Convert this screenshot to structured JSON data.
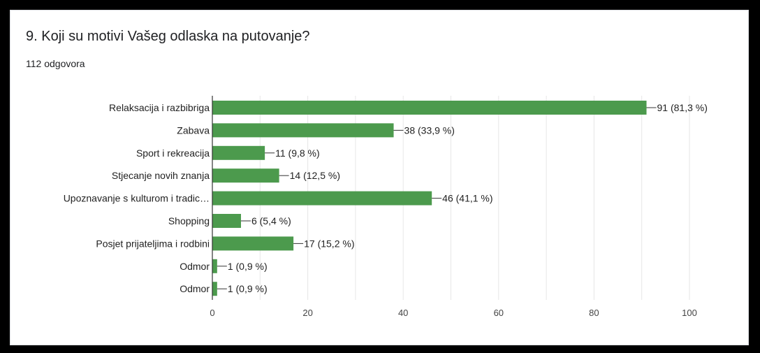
{
  "question": {
    "title": "9. Koji su motivi Vašeg odlaska na putovanje?",
    "responses": "112 odgovora"
  },
  "colors": {
    "bar": "#4c9a4d",
    "grid": "#e6e6e6",
    "axis": "#333333",
    "text": "#222222",
    "tick": "#444444"
  },
  "chart_data": {
    "type": "bar",
    "orientation": "horizontal",
    "categories": [
      "Relaksacija i razbibriga",
      "Zabava",
      "Sport i rekreacija",
      "Stjecanje novih znanja",
      "Upoznavanje s kulturom i tradic…",
      "Shopping",
      "Posjet prijateljima i rodbini",
      "Odmor",
      "Odmor"
    ],
    "values": [
      91,
      38,
      11,
      14,
      46,
      6,
      17,
      1,
      1
    ],
    "data_labels": [
      "91 (81,3 %)",
      "38 (33,9 %)",
      "11 (9,8 %)",
      "14 (12,5 %)",
      "46 (41,1 %)",
      "6 (5,4 %)",
      "17 (15,2 %)",
      "1 (0,9 %)",
      "1 (0,9 %)"
    ],
    "xlim": [
      0,
      100
    ],
    "xticks": [
      0,
      20,
      40,
      60,
      80,
      100
    ],
    "grid": true,
    "legend": "none"
  }
}
